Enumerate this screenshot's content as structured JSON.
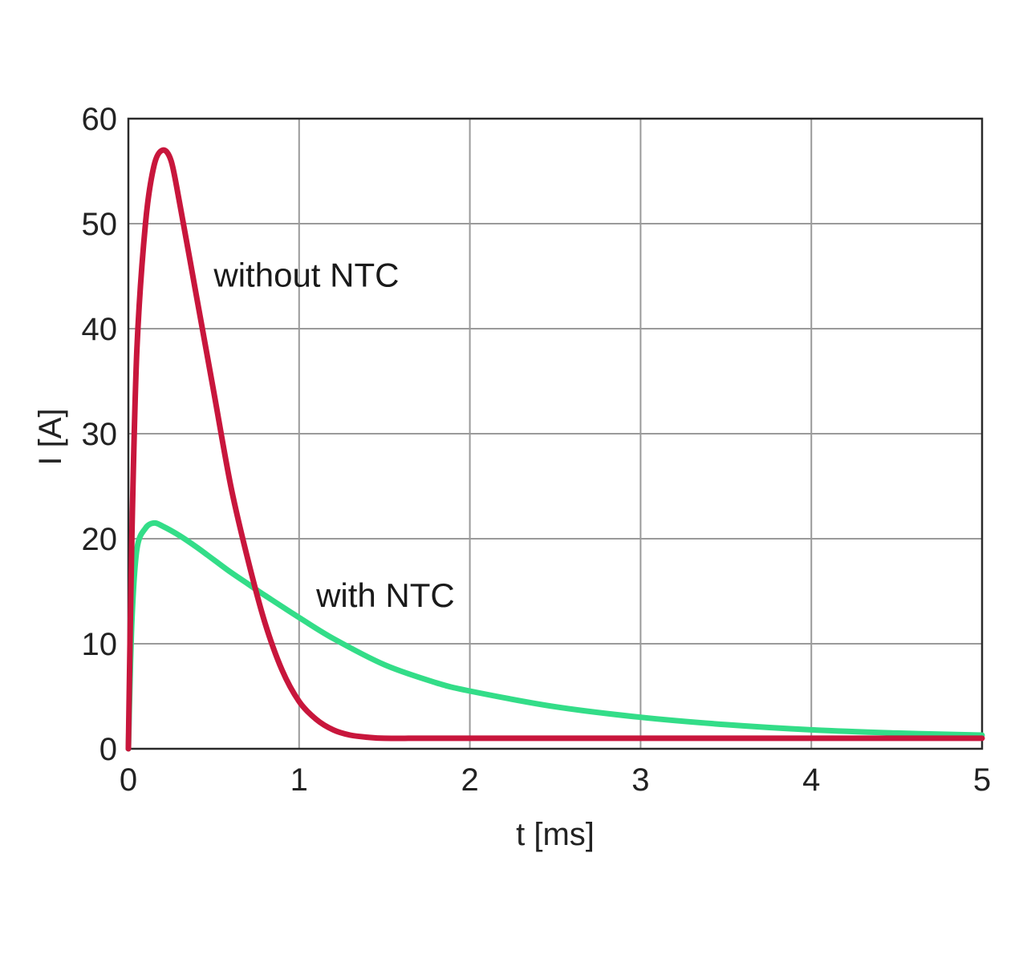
{
  "chart_data": {
    "type": "line",
    "title": "",
    "xlabel": "t [ms]",
    "ylabel": "I [A]",
    "xlim": [
      0,
      5
    ],
    "ylim": [
      0,
      60
    ],
    "x_ticks": [
      "0",
      "1",
      "2",
      "3",
      "4",
      "5"
    ],
    "y_ticks": [
      "0",
      "10",
      "20",
      "30",
      "40",
      "50",
      "60"
    ],
    "grid": true,
    "legend": "none",
    "annotations": [
      {
        "text": "without NTC",
        "series": "without NTC"
      },
      {
        "text": "with NTC",
        "series": "with NTC"
      }
    ],
    "series": [
      {
        "name": "without NTC",
        "color": "#c8163c",
        "x": [
          0,
          0.02,
          0.05,
          0.1,
          0.15,
          0.2,
          0.25,
          0.3,
          0.4,
          0.5,
          0.6,
          0.7,
          0.8,
          0.9,
          1.0,
          1.1,
          1.2,
          1.3,
          1.4,
          1.5,
          1.7,
          2.0,
          2.5,
          3.0,
          3.5,
          4.0,
          4.5,
          5.0
        ],
        "y": [
          0,
          20,
          38,
          50,
          55.5,
          57,
          56,
          52,
          43,
          34,
          25,
          18,
          12,
          7.5,
          4.5,
          2.8,
          1.8,
          1.3,
          1.1,
          1.0,
          1.0,
          1.0,
          1.0,
          1.0,
          1.0,
          1.0,
          1.0,
          1.0
        ]
      },
      {
        "name": "with NTC",
        "color": "#33dd88",
        "x": [
          0,
          0.02,
          0.05,
          0.1,
          0.15,
          0.2,
          0.3,
          0.4,
          0.5,
          0.6,
          0.7,
          0.8,
          1.0,
          1.2,
          1.5,
          1.8,
          2.0,
          2.5,
          3.0,
          3.5,
          4.0,
          4.5,
          5.0
        ],
        "y": [
          0,
          12,
          19,
          21,
          21.5,
          21.2,
          20.3,
          19.2,
          18,
          16.8,
          15.7,
          14.6,
          12.5,
          10.5,
          8.0,
          6.3,
          5.5,
          4.0,
          3.0,
          2.3,
          1.8,
          1.5,
          1.3
        ]
      }
    ]
  }
}
